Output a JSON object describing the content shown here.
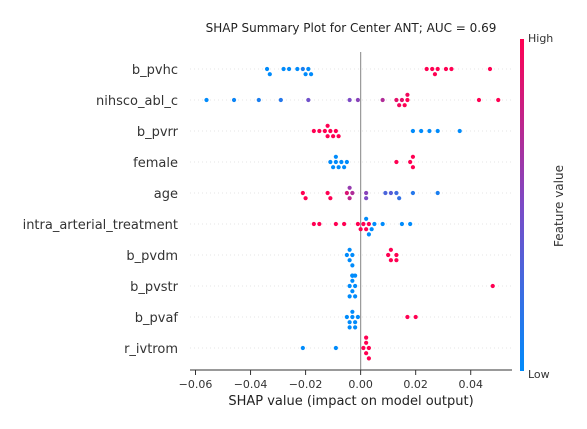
{
  "chart_data": {
    "type": "scatter",
    "title": "SHAP Summary Plot for Center ANT; AUC = 0.69",
    "xlabel": "SHAP value (impact on model output)",
    "xlim": [
      -0.062,
      0.055
    ],
    "xticks": [
      -0.06,
      -0.04,
      -0.02,
      0.0,
      0.02,
      0.04
    ],
    "xtick_labels": [
      "−0.06",
      "−0.04",
      "−0.02",
      "0.00",
      "0.02",
      "0.04"
    ],
    "colorbar": {
      "title": "Feature value",
      "high_label": "High",
      "low_label": "Low",
      "high_color": "#ff0052",
      "low_color": "#008bfb"
    },
    "features": [
      "b_pvhc",
      "nihsco_abl_c",
      "b_pvrr",
      "female",
      "age",
      "intra_arterial_treatment",
      "b_pvdm",
      "b_pvstr",
      "b_pvaf",
      "r_ivtrom"
    ],
    "series": [
      {
        "feature": "b_pvhc",
        "points": [
          [
            -0.034,
            0.0
          ],
          [
            -0.033,
            0.0
          ],
          [
            -0.028,
            0.0
          ],
          [
            -0.026,
            0.0
          ],
          [
            -0.023,
            0.0
          ],
          [
            -0.021,
            0.1
          ],
          [
            -0.02,
            0.0
          ],
          [
            -0.019,
            0.0
          ],
          [
            -0.018,
            0.0
          ],
          [
            0.024,
            1.0
          ],
          [
            0.026,
            1.0
          ],
          [
            0.027,
            1.0
          ],
          [
            0.028,
            1.0
          ],
          [
            0.031,
            1.0
          ],
          [
            0.033,
            1.0
          ],
          [
            0.047,
            1.0
          ]
        ]
      },
      {
        "feature": "nihsco_abl_c",
        "points": [
          [
            -0.056,
            0.0
          ],
          [
            -0.046,
            0.05
          ],
          [
            -0.037,
            0.1
          ],
          [
            -0.029,
            0.15
          ],
          [
            -0.019,
            0.45
          ],
          [
            -0.004,
            0.5
          ],
          [
            -0.001,
            0.55
          ],
          [
            0.008,
            0.7
          ],
          [
            0.013,
            0.9
          ],
          [
            0.014,
            0.95
          ],
          [
            0.015,
            0.9
          ],
          [
            0.016,
            1.0
          ],
          [
            0.017,
            1.0
          ],
          [
            0.017,
            0.95
          ],
          [
            0.043,
            1.0
          ],
          [
            0.05,
            1.0
          ]
        ]
      },
      {
        "feature": "b_pvrr",
        "points": [
          [
            -0.017,
            1.0
          ],
          [
            -0.015,
            1.0
          ],
          [
            -0.013,
            1.0
          ],
          [
            -0.012,
            1.0
          ],
          [
            -0.011,
            1.0
          ],
          [
            -0.01,
            1.0
          ],
          [
            -0.009,
            1.0
          ],
          [
            -0.008,
            1.0
          ],
          [
            -0.012,
            1.0
          ],
          [
            0.019,
            0.0
          ],
          [
            0.022,
            0.0
          ],
          [
            0.025,
            0.0
          ],
          [
            0.028,
            0.0
          ],
          [
            0.036,
            0.0
          ]
        ]
      },
      {
        "feature": "female",
        "points": [
          [
            -0.011,
            0.0
          ],
          [
            -0.01,
            0.0
          ],
          [
            -0.009,
            0.0
          ],
          [
            -0.008,
            0.0
          ],
          [
            -0.007,
            0.0
          ],
          [
            -0.006,
            0.0
          ],
          [
            -0.005,
            0.0
          ],
          [
            -0.009,
            0.0
          ],
          [
            0.013,
            1.0
          ],
          [
            0.018,
            1.0
          ],
          [
            0.019,
            1.0
          ],
          [
            0.019,
            1.0
          ]
        ]
      },
      {
        "feature": "age",
        "points": [
          [
            -0.021,
            1.0
          ],
          [
            -0.02,
            1.0
          ],
          [
            -0.012,
            1.0
          ],
          [
            -0.011,
            1.0
          ],
          [
            -0.005,
            0.85
          ],
          [
            -0.004,
            0.75
          ],
          [
            -0.003,
            0.7
          ],
          [
            -0.004,
            0.6
          ],
          [
            0.002,
            0.55
          ],
          [
            0.002,
            0.5
          ],
          [
            0.009,
            0.3
          ],
          [
            0.011,
            0.35
          ],
          [
            0.013,
            0.25
          ],
          [
            0.014,
            0.2
          ],
          [
            0.019,
            0.15
          ],
          [
            0.028,
            0.1
          ]
        ]
      },
      {
        "feature": "intra_arterial_treatment",
        "points": [
          [
            -0.017,
            1.0
          ],
          [
            -0.015,
            1.0
          ],
          [
            -0.009,
            1.0
          ],
          [
            -0.006,
            1.0
          ],
          [
            -0.001,
            1.0
          ],
          [
            0.0,
            1.0
          ],
          [
            0.001,
            1.0
          ],
          [
            0.002,
            1.0
          ],
          [
            0.003,
            1.0
          ],
          [
            0.002,
            0.0
          ],
          [
            0.003,
            0.0
          ],
          [
            0.004,
            0.0
          ],
          [
            0.005,
            0.0
          ],
          [
            0.008,
            0.0
          ],
          [
            0.015,
            0.0
          ],
          [
            0.018,
            0.0
          ]
        ]
      },
      {
        "feature": "b_pvdm",
        "points": [
          [
            -0.005,
            0.0
          ],
          [
            -0.004,
            0.0
          ],
          [
            -0.003,
            0.0
          ],
          [
            -0.004,
            0.0
          ],
          [
            -0.003,
            0.0
          ],
          [
            0.01,
            1.0
          ],
          [
            0.011,
            1.0
          ],
          [
            0.013,
            1.0
          ],
          [
            0.013,
            1.0
          ],
          [
            0.011,
            1.0
          ]
        ]
      },
      {
        "feature": "b_pvstr",
        "points": [
          [
            -0.004,
            0.0
          ],
          [
            -0.003,
            0.0
          ],
          [
            -0.002,
            0.0
          ],
          [
            -0.003,
            0.0
          ],
          [
            -0.002,
            0.0
          ],
          [
            -0.003,
            0.0
          ],
          [
            -0.004,
            0.0
          ],
          [
            -0.002,
            0.0
          ],
          [
            -0.003,
            0.0
          ],
          [
            -0.003,
            0.0
          ],
          [
            0.048,
            1.0
          ]
        ]
      },
      {
        "feature": "b_pvaf",
        "points": [
          [
            -0.005,
            0.0
          ],
          [
            -0.004,
            0.0
          ],
          [
            -0.003,
            0.0
          ],
          [
            -0.002,
            0.0
          ],
          [
            -0.001,
            0.0
          ],
          [
            -0.003,
            0.0
          ],
          [
            -0.002,
            0.0
          ],
          [
            -0.004,
            0.0
          ],
          [
            0.017,
            1.0
          ],
          [
            0.02,
            1.0
          ]
        ]
      },
      {
        "feature": "r_ivtrom",
        "points": [
          [
            -0.021,
            0.0
          ],
          [
            -0.009,
            0.0
          ],
          [
            0.001,
            1.0
          ],
          [
            0.002,
            1.0
          ],
          [
            0.003,
            1.0
          ],
          [
            0.002,
            1.0
          ],
          [
            0.003,
            1.0
          ],
          [
            0.002,
            1.0
          ]
        ]
      }
    ]
  }
}
